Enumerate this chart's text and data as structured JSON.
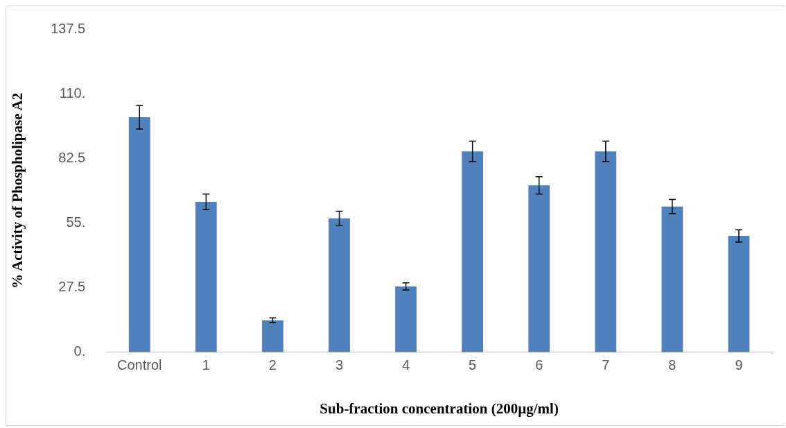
{
  "chart_data": {
    "type": "bar",
    "xlabel": "Sub-fraction concentration (200µg/ml)",
    "ylabel": "% Activity of Phospholipase A2",
    "categories": [
      "Control",
      "1",
      "2",
      "3",
      "4",
      "5",
      "6",
      "7",
      "8",
      "9"
    ],
    "values": [
      100,
      64,
      13.6,
      57,
      28,
      85.5,
      71,
      85.5,
      62,
      49.5
    ],
    "errors": [
      5,
      3.3,
      1,
      3,
      1.5,
      4.3,
      3.7,
      4.3,
      3,
      2.6
    ],
    "color": "#4f81bd",
    "ylim": [
      0,
      137.5
    ],
    "yticks": [
      {
        "value": 0,
        "label": "0."
      },
      27.5,
      {
        "value": 55,
        "label": "55."
      },
      82.5,
      {
        "value": 110,
        "label": "110."
      },
      137.5
    ],
    "grid": false,
    "legend": false
  }
}
